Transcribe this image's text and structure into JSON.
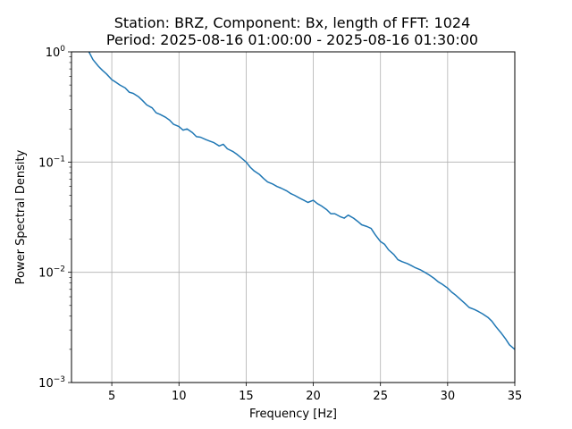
{
  "chart_data": {
    "type": "line",
    "title_line1": "Station: BRZ, Component: Bx, length of FFT: 1024",
    "title_line2": "Period: 2025-08-16 01:00:00 - 2025-08-16 01:30:00",
    "xlabel": "Frequency [Hz]",
    "ylabel": "Power Spectral Density",
    "xlim": [
      2.0,
      35.0
    ],
    "ylim": [
      0.001,
      1.0
    ],
    "y_scale": "log",
    "grid": true,
    "line_color": "#1f77b4",
    "x_ticks": [
      {
        "value": 5,
        "label": "5"
      },
      {
        "value": 10,
        "label": "10"
      },
      {
        "value": 15,
        "label": "15"
      },
      {
        "value": 20,
        "label": "20"
      },
      {
        "value": 25,
        "label": "25"
      },
      {
        "value": 30,
        "label": "30"
      },
      {
        "value": 35,
        "label": "35"
      }
    ],
    "y_ticks": [
      {
        "value": 0.001,
        "base": "10",
        "exp": "−3"
      },
      {
        "value": 0.01,
        "base": "10",
        "exp": "−2"
      },
      {
        "value": 0.1,
        "base": "10",
        "exp": "−1"
      },
      {
        "value": 1.0,
        "base": "10",
        "exp": "0"
      }
    ],
    "series": [
      {
        "x": [
          3.3,
          3.6,
          4.0,
          4.3,
          4.6,
          5.0,
          5.3,
          5.6,
          6.0,
          6.3,
          6.6,
          7.0,
          7.3,
          7.6,
          8.0,
          8.3,
          8.6,
          9.0,
          9.3,
          9.6,
          10.0,
          10.3,
          10.6,
          11.0,
          11.3,
          11.6,
          12.0,
          12.3,
          12.6,
          13.0,
          13.3,
          13.6,
          14.0,
          14.3,
          14.6,
          15.0,
          15.3,
          15.6,
          16.0,
          16.3,
          16.6,
          17.0,
          17.3,
          17.6,
          18.0,
          18.3,
          18.6,
          19.0,
          19.3,
          19.6,
          20.0,
          20.3,
          20.6,
          21.0,
          21.3,
          21.6,
          22.0,
          22.3,
          22.6,
          23.0,
          23.3,
          23.6,
          24.0,
          24.3,
          24.6,
          25.0,
          25.3,
          25.6,
          26.0,
          26.3,
          26.6,
          27.0,
          27.3,
          27.6,
          28.0,
          28.3,
          28.6,
          29.0,
          29.3,
          29.6,
          30.0,
          30.3,
          30.6,
          31.0,
          31.3,
          31.6,
          32.0,
          32.3,
          32.6,
          33.0,
          33.3,
          33.6,
          34.0,
          34.3,
          34.6,
          35.0
        ],
        "y": [
          1.0,
          0.85,
          0.74,
          0.68,
          0.63,
          0.56,
          0.53,
          0.5,
          0.47,
          0.43,
          0.42,
          0.39,
          0.36,
          0.33,
          0.31,
          0.28,
          0.27,
          0.255,
          0.24,
          0.22,
          0.21,
          0.195,
          0.2,
          0.185,
          0.17,
          0.168,
          0.16,
          0.155,
          0.15,
          0.14,
          0.145,
          0.132,
          0.125,
          0.118,
          0.11,
          0.1,
          0.09,
          0.083,
          0.077,
          0.071,
          0.066,
          0.063,
          0.06,
          0.058,
          0.055,
          0.052,
          0.05,
          0.047,
          0.045,
          0.043,
          0.045,
          0.042,
          0.04,
          0.037,
          0.034,
          0.034,
          0.032,
          0.031,
          0.033,
          0.031,
          0.029,
          0.027,
          0.026,
          0.025,
          0.022,
          0.019,
          0.018,
          0.016,
          0.0145,
          0.013,
          0.0125,
          0.012,
          0.0115,
          0.011,
          0.0105,
          0.01,
          0.0095,
          0.0088,
          0.0082,
          0.0078,
          0.0072,
          0.0066,
          0.0062,
          0.0056,
          0.0052,
          0.0048,
          0.0046,
          0.0044,
          0.0042,
          0.0039,
          0.0036,
          0.0032,
          0.0028,
          0.0025,
          0.0022,
          0.002
        ]
      }
    ]
  }
}
